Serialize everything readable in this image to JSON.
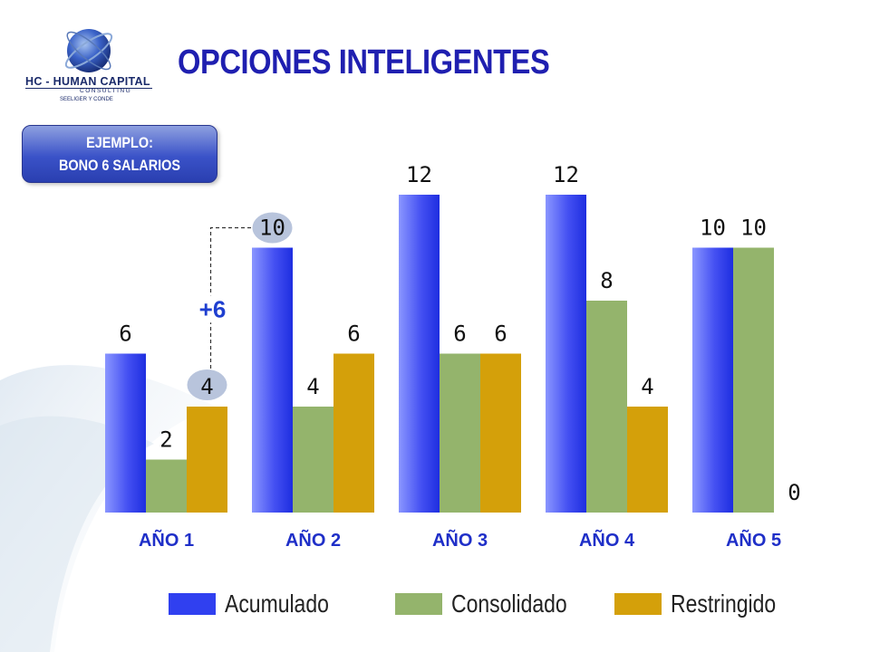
{
  "header": {
    "title": "OPCIONES INTELIGENTES",
    "example_line1": "EJEMPLO:",
    "example_line2": "BONO 6 SALARIOS"
  },
  "logo": {
    "name": "HC - HUMAN CAPITAL",
    "subtitle": "CONSULTING",
    "tagline": "SEELIGER Y CONDE"
  },
  "annotation": {
    "delta_label": "+6",
    "color": "#1f3fd0"
  },
  "legend": [
    {
      "label": "Acumulado",
      "color": "#3040f0"
    },
    {
      "label": "Consolidado",
      "color": "#94b46c"
    },
    {
      "label": "Restringido",
      "color": "#d4a00a"
    }
  ],
  "chart_data": {
    "type": "bar",
    "categories": [
      "AÑO 1",
      "AÑO 2",
      "AÑO 3",
      "AÑO 4",
      "AÑO 5"
    ],
    "series": [
      {
        "name": "Acumulado",
        "values": [
          6,
          10,
          12,
          12,
          10
        ],
        "color": "#3040f0"
      },
      {
        "name": "Consolidado",
        "values": [
          2,
          4,
          6,
          8,
          10
        ],
        "color": "#94b46c"
      },
      {
        "name": "Restringido",
        "values": [
          4,
          6,
          6,
          4,
          0
        ],
        "color": "#d4a00a"
      }
    ],
    "value_labels": [
      [
        "6",
        "2",
        "4"
      ],
      [
        "10",
        "4",
        "6"
      ],
      [
        "12",
        "6",
        "6"
      ],
      [
        "12",
        "8",
        "4"
      ],
      [
        "10",
        "10",
        "0"
      ]
    ],
    "ylim": [
      0,
      12
    ],
    "grid": false,
    "legend_position": "bottom",
    "title": "",
    "xlabel": "",
    "ylabel": ""
  }
}
